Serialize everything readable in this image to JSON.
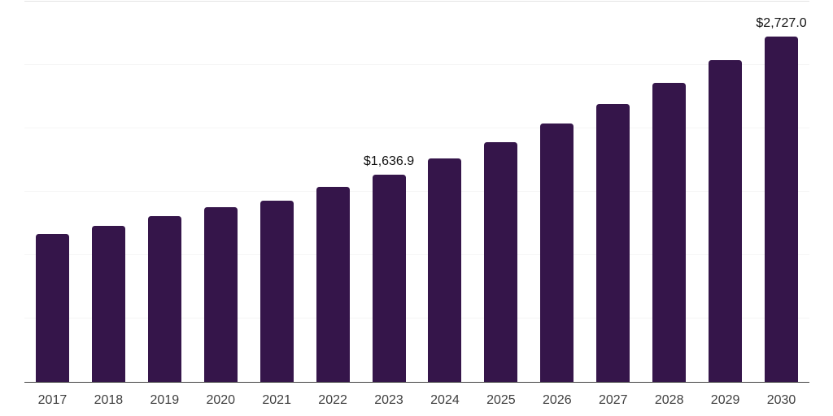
{
  "chart_data": {
    "type": "bar",
    "title": "",
    "xlabel": "",
    "ylabel": "",
    "categories": [
      "2017",
      "2018",
      "2019",
      "2020",
      "2021",
      "2022",
      "2023",
      "2024",
      "2025",
      "2026",
      "2027",
      "2028",
      "2029",
      "2030"
    ],
    "values": [
      1168.0,
      1232.5,
      1308.0,
      1378.0,
      1432.0,
      1538.0,
      1636.9,
      1760.8,
      1894.1,
      2037.4,
      2191.6,
      2357.5,
      2535.9,
      2727.0
    ],
    "data_labels": [
      {
        "category": "2023",
        "text": "$1,636.9"
      },
      {
        "category": "2030",
        "text": "$2,727.0"
      }
    ],
    "ylim": [
      0,
      3000
    ],
    "grid_step": 500,
    "grid": "horizontal",
    "legend_position": "none",
    "y_axis_labels_visible": false,
    "value_unit_prefix": "$"
  },
  "colors": {
    "bar": "#35154A",
    "grid": "#f5f5f5",
    "grid_top": "#e3e3e3",
    "axis": "#424242",
    "tick_label": "#3f3f3f",
    "data_label": "#111111",
    "background": "#ffffff"
  }
}
